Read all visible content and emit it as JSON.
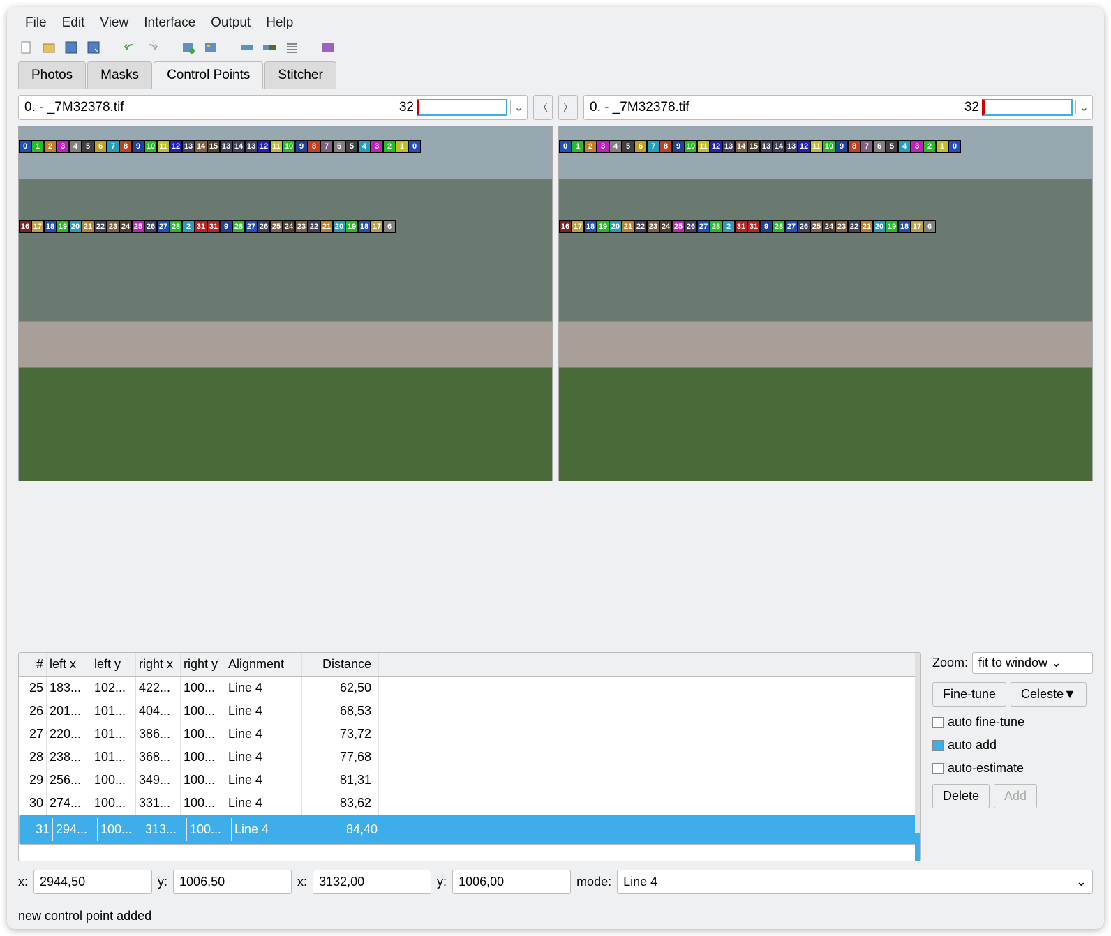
{
  "menu": [
    "File",
    "Edit",
    "View",
    "Interface",
    "Output",
    "Help"
  ],
  "tabs": {
    "items": [
      "Photos",
      "Masks",
      "Control Points",
      "Stitcher"
    ],
    "active": 2
  },
  "image_selector": {
    "left": {
      "filename": "0. - _7M32378.tif",
      "number": "32"
    },
    "right": {
      "filename": "0. - _7M32378.tif",
      "number": "32"
    }
  },
  "cp_markers": {
    "row1": [
      {
        "n": "0",
        "c": "#2050c0"
      },
      {
        "n": "1",
        "c": "#20c020"
      },
      {
        "n": "2",
        "c": "#c08020"
      },
      {
        "n": "3",
        "c": "#c020c0"
      },
      {
        "n": "4",
        "c": "#808080"
      },
      {
        "n": "5",
        "c": "#404040"
      },
      {
        "n": "6",
        "c": "#c0a020"
      },
      {
        "n": "7",
        "c": "#20a0c0"
      },
      {
        "n": "8",
        "c": "#c04020"
      },
      {
        "n": "9",
        "c": "#2040a0"
      },
      {
        "n": "10",
        "c": "#20c020"
      },
      {
        "n": "11",
        "c": "#c0c020"
      },
      {
        "n": "12",
        "c": "#2020c0"
      },
      {
        "n": "13",
        "c": "#404060"
      },
      {
        "n": "14",
        "c": "#806040"
      },
      {
        "n": "15",
        "c": "#504030"
      },
      {
        "n": "13",
        "c": "#404060"
      },
      {
        "n": "14",
        "c": "#404060"
      },
      {
        "n": "13",
        "c": "#404060"
      },
      {
        "n": "12",
        "c": "#2020c0"
      },
      {
        "n": "11",
        "c": "#c0c020"
      },
      {
        "n": "10",
        "c": "#20c020"
      },
      {
        "n": "9",
        "c": "#2040a0"
      },
      {
        "n": "8",
        "c": "#c04020"
      },
      {
        "n": "7",
        "c": "#806080"
      },
      {
        "n": "6",
        "c": "#808080"
      },
      {
        "n": "5",
        "c": "#404040"
      },
      {
        "n": "4",
        "c": "#20a0c0"
      },
      {
        "n": "3",
        "c": "#c020c0"
      },
      {
        "n": "2",
        "c": "#20c020"
      },
      {
        "n": "1",
        "c": "#c0c020"
      },
      {
        "n": "0",
        "c": "#2050c0"
      }
    ],
    "row2": [
      {
        "n": "16",
        "c": "#802020"
      },
      {
        "n": "17",
        "c": "#c0a040"
      },
      {
        "n": "18",
        "c": "#2050c0"
      },
      {
        "n": "19",
        "c": "#20c020"
      },
      {
        "n": "20",
        "c": "#20a0c0"
      },
      {
        "n": "21",
        "c": "#c08020"
      },
      {
        "n": "22",
        "c": "#404060"
      },
      {
        "n": "23",
        "c": "#806040"
      },
      {
        "n": "24",
        "c": "#504030"
      },
      {
        "n": "25",
        "c": "#c020c0"
      },
      {
        "n": "26",
        "c": "#404060"
      },
      {
        "n": "27",
        "c": "#2050c0"
      },
      {
        "n": "28",
        "c": "#20c020"
      },
      {
        "n": "2",
        "c": "#20a0c0"
      },
      {
        "n": "31",
        "c": "#c02020"
      },
      {
        "n": "31",
        "c": "#c02020"
      },
      {
        "n": "9",
        "c": "#2040a0"
      },
      {
        "n": "28",
        "c": "#20c020"
      },
      {
        "n": "27",
        "c": "#2050c0"
      },
      {
        "n": "26",
        "c": "#404060"
      },
      {
        "n": "25",
        "c": "#806040"
      },
      {
        "n": "24",
        "c": "#504030"
      },
      {
        "n": "23",
        "c": "#806040"
      },
      {
        "n": "22",
        "c": "#404060"
      },
      {
        "n": "21",
        "c": "#c08020"
      },
      {
        "n": "20",
        "c": "#20a0c0"
      },
      {
        "n": "19",
        "c": "#20c020"
      },
      {
        "n": "18",
        "c": "#2050c0"
      },
      {
        "n": "17",
        "c": "#c0a040"
      },
      {
        "n": "6",
        "c": "#808080"
      }
    ]
  },
  "table": {
    "headers": [
      "#",
      "left x",
      "left y",
      "right x",
      "right y",
      "Alignment",
      "Distance"
    ],
    "rows": [
      {
        "n": "25",
        "lx": "183...",
        "ly": "102...",
        "rx": "422...",
        "ry": "100...",
        "al": "Line 4",
        "d": "62,50"
      },
      {
        "n": "26",
        "lx": "201...",
        "ly": "101...",
        "rx": "404...",
        "ry": "100...",
        "al": "Line 4",
        "d": "68,53"
      },
      {
        "n": "27",
        "lx": "220...",
        "ly": "101...",
        "rx": "386...",
        "ry": "100...",
        "al": "Line 4",
        "d": "73,72"
      },
      {
        "n": "28",
        "lx": "238...",
        "ly": "101...",
        "rx": "368...",
        "ry": "100...",
        "al": "Line 4",
        "d": "77,68"
      },
      {
        "n": "29",
        "lx": "256...",
        "ly": "100...",
        "rx": "349...",
        "ry": "100...",
        "al": "Line 4",
        "d": "81,31"
      },
      {
        "n": "30",
        "lx": "274...",
        "ly": "100...",
        "rx": "331...",
        "ry": "100...",
        "al": "Line 4",
        "d": "83,62"
      },
      {
        "n": "31",
        "lx": "294...",
        "ly": "100...",
        "rx": "313...",
        "ry": "100...",
        "al": "Line 4",
        "d": "84,40",
        "sel": true
      }
    ]
  },
  "side": {
    "zoom_label": "Zoom:",
    "zoom_value": "fit to window",
    "finetune": "Fine-tune",
    "celeste": "Celeste▼",
    "auto_finetune": "auto fine-tune",
    "auto_add": "auto add",
    "auto_estimate": "auto-estimate",
    "delete": "Delete",
    "add": "Add"
  },
  "coords": {
    "x1_label": "x:",
    "x1": "2944,50",
    "y1_label": "y:",
    "y1": "1006,50",
    "x2_label": "x:",
    "x2": "3132,00",
    "y2_label": "y:",
    "y2": "1006,00",
    "mode_label": "mode:",
    "mode_value": "Line 4"
  },
  "status": "new control point added",
  "colors": {
    "accent": "#3daee9",
    "bg": "#eff0f1",
    "border": "#bcbcbc"
  }
}
